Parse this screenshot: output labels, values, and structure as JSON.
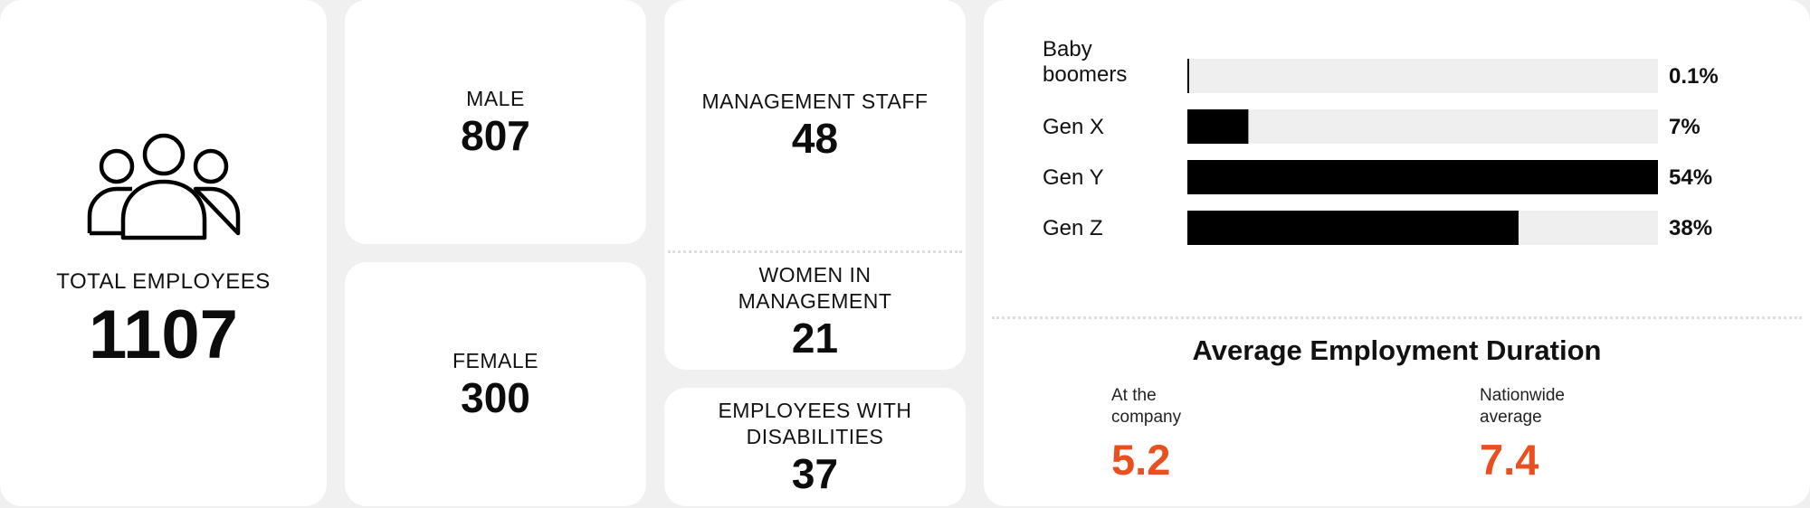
{
  "colors": {
    "accent": "#e8501f",
    "bar": "#000000",
    "track": "#efefef",
    "card": "#ffffff",
    "background": "#f0f0f0"
  },
  "total": {
    "label": "TOTAL EMPLOYEES",
    "value": "1107",
    "icon": "group-of-people-icon"
  },
  "male": {
    "label": "MALE",
    "value": "807"
  },
  "female": {
    "label": "FEMALE",
    "value": "300"
  },
  "management": {
    "label": "MANAGEMENT STAFF",
    "value": "48"
  },
  "women_management": {
    "label": "WOMEN IN MANAGEMENT",
    "value": "21"
  },
  "disabilities": {
    "label": "EMPLOYEES WITH DISABILITIES",
    "value": "37"
  },
  "chart_data": {
    "type": "bar",
    "orientation": "horizontal",
    "categories": [
      "Baby boomers",
      "Gen X",
      "Gen Y",
      "Gen Z"
    ],
    "values": [
      0.1,
      7,
      54,
      38
    ],
    "value_labels": [
      "0.1%",
      "7%",
      "54%",
      "38%"
    ],
    "xlim": [
      0,
      54
    ],
    "grid": false,
    "legend": "none"
  },
  "avg_duration": {
    "title": "Average Employment Duration",
    "company": {
      "label": "At the company",
      "value": "5.2"
    },
    "nationwide": {
      "label": "Nationwide average",
      "value": "7.4"
    }
  }
}
